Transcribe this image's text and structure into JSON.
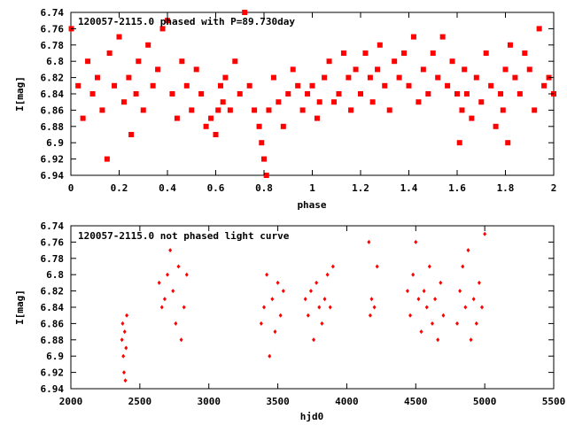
{
  "chart_data": [
    {
      "type": "scatter",
      "title": "120057-2115.0 phased with P=89.730day",
      "xlabel": "phase",
      "ylabel": "I[mag]",
      "xlim": [
        0,
        2
      ],
      "ylim": [
        6.74,
        6.94
      ],
      "y_inverted": true,
      "x_ticks": [
        "0",
        "0.2",
        "0.4",
        "0.6",
        "0.8",
        "1",
        "1.2",
        "1.4",
        "1.6",
        "1.8",
        "2"
      ],
      "y_ticks": [
        "6.74",
        "6.76",
        "6.78",
        "6.8",
        "6.82",
        "6.84",
        "6.86",
        "6.88",
        "6.9",
        "6.92",
        "6.94"
      ],
      "marker_color": "#ff0000",
      "marker": "square-star",
      "grid": false,
      "series": [
        {
          "x": [
            0.002,
            0.03,
            0.05,
            0.07,
            0.09,
            0.11,
            0.13,
            0.15,
            0.16,
            0.18,
            0.2,
            0.22,
            0.24,
            0.25,
            0.27,
            0.28,
            0.3,
            0.32,
            0.34,
            0.36,
            0.38,
            0.4,
            0.42,
            0.44,
            0.46,
            0.48,
            0.5,
            0.52,
            0.54,
            0.56,
            0.58,
            0.6,
            0.61,
            0.62,
            0.63,
            0.64,
            0.66,
            0.68,
            0.7,
            0.72,
            0.74,
            0.76,
            0.78,
            0.79,
            0.8,
            0.81,
            0.82,
            0.84,
            0.86,
            0.88,
            0.9,
            0.92,
            0.94,
            0.96,
            0.98,
            1.0,
            1.02,
            1.03,
            1.05,
            1.07,
            1.09,
            1.11,
            1.13,
            1.15,
            1.16,
            1.18,
            1.2,
            1.22,
            1.24,
            1.25,
            1.27,
            1.28,
            1.3,
            1.32,
            1.34,
            1.36,
            1.38,
            1.4,
            1.42,
            1.44,
            1.46,
            1.48,
            1.5,
            1.52,
            1.54,
            1.56,
            1.58,
            1.6,
            1.61,
            1.62,
            1.63,
            1.64,
            1.66,
            1.68,
            1.7,
            1.72,
            1.74,
            1.76,
            1.78,
            1.79,
            1.8,
            1.81,
            1.82,
            1.84,
            1.86,
            1.88,
            1.9,
            1.92,
            1.94,
            1.96,
            1.98,
            2.0
          ],
          "y": [
            6.76,
            6.83,
            6.87,
            6.8,
            6.84,
            6.82,
            6.86,
            6.92,
            6.79,
            6.83,
            6.77,
            6.85,
            6.82,
            6.89,
            6.84,
            6.8,
            6.86,
            6.78,
            6.83,
            6.81,
            6.76,
            6.75,
            6.84,
            6.87,
            6.8,
            6.83,
            6.86,
            6.81,
            6.84,
            6.88,
            6.87,
            6.89,
            6.86,
            6.83,
            6.85,
            6.82,
            6.86,
            6.8,
            6.84,
            6.74,
            6.83,
            6.86,
            6.88,
            6.9,
            6.92,
            6.94,
            6.86,
            6.82,
            6.85,
            6.88,
            6.84,
            6.81,
            6.83,
            6.86,
            6.84,
            6.83,
            6.87,
            6.85,
            6.82,
            6.8,
            6.85,
            6.84,
            6.79,
            6.82,
            6.86,
            6.81,
            6.84,
            6.79,
            6.82,
            6.85,
            6.81,
            6.78,
            6.83,
            6.86,
            6.8,
            6.82,
            6.79,
            6.83,
            6.77,
            6.85,
            6.81,
            6.84,
            6.79,
            6.82,
            6.77,
            6.83,
            6.8,
            6.84,
            6.9,
            6.86,
            6.81,
            6.84,
            6.87,
            6.82,
            6.85,
            6.79,
            6.83,
            6.88,
            6.84,
            6.86,
            6.81,
            6.9,
            6.78,
            6.82,
            6.84,
            6.79,
            6.81,
            6.86,
            6.76,
            6.83,
            6.82,
            6.84
          ]
        }
      ]
    },
    {
      "type": "scatter",
      "title": "120057-2115.0 not phased light curve",
      "xlabel": "hjd0",
      "ylabel": "I[mag]",
      "xlim": [
        2000,
        5500
      ],
      "ylim": [
        6.74,
        6.94
      ],
      "y_inverted": true,
      "x_ticks": [
        "2000",
        "2500",
        "3000",
        "3500",
        "4000",
        "4500",
        "5000",
        "5500"
      ],
      "y_ticks": [
        "6.74",
        "6.76",
        "6.78",
        "6.8",
        "6.82",
        "6.84",
        "6.86",
        "6.88",
        "6.9",
        "6.92",
        "6.94"
      ],
      "marker_color": "#ff0000",
      "marker": "diamond",
      "grid": false,
      "series": [
        {
          "x": [
            2370,
            2375,
            2380,
            2385,
            2390,
            2395,
            2400,
            2405,
            2640,
            2660,
            2680,
            2700,
            2720,
            2740,
            2760,
            2780,
            2800,
            2820,
            2840,
            3380,
            3400,
            3420,
            3440,
            3460,
            3480,
            3500,
            3520,
            3540,
            3700,
            3720,
            3740,
            3760,
            3780,
            3800,
            3820,
            3840,
            3860,
            3880,
            3900,
            4160,
            4170,
            4180,
            4200,
            4220,
            4440,
            4460,
            4480,
            4500,
            4520,
            4540,
            4560,
            4580,
            4600,
            4620,
            4640,
            4660,
            4680,
            4700,
            4800,
            4820,
            4840,
            4860,
            4880,
            4900,
            4920,
            4940,
            4960,
            4980,
            5000
          ],
          "y": [
            6.88,
            6.86,
            6.9,
            6.92,
            6.87,
            6.93,
            6.89,
            6.85,
            6.81,
            6.84,
            6.83,
            6.8,
            6.77,
            6.82,
            6.86,
            6.79,
            6.88,
            6.84,
            6.8,
            6.86,
            6.84,
            6.8,
            6.9,
            6.83,
            6.87,
            6.81,
            6.85,
            6.82,
            6.83,
            6.85,
            6.82,
            6.88,
            6.81,
            6.84,
            6.86,
            6.83,
            6.8,
            6.84,
            6.79,
            6.76,
            6.85,
            6.83,
            6.84,
            6.79,
            6.82,
            6.85,
            6.8,
            6.76,
            6.83,
            6.87,
            6.82,
            6.84,
            6.79,
            6.86,
            6.83,
            6.88,
            6.81,
            6.85,
            6.86,
            6.82,
            6.79,
            6.84,
            6.77,
            6.88,
            6.83,
            6.86,
            6.81,
            6.84,
            6.75
          ]
        }
      ]
    }
  ]
}
